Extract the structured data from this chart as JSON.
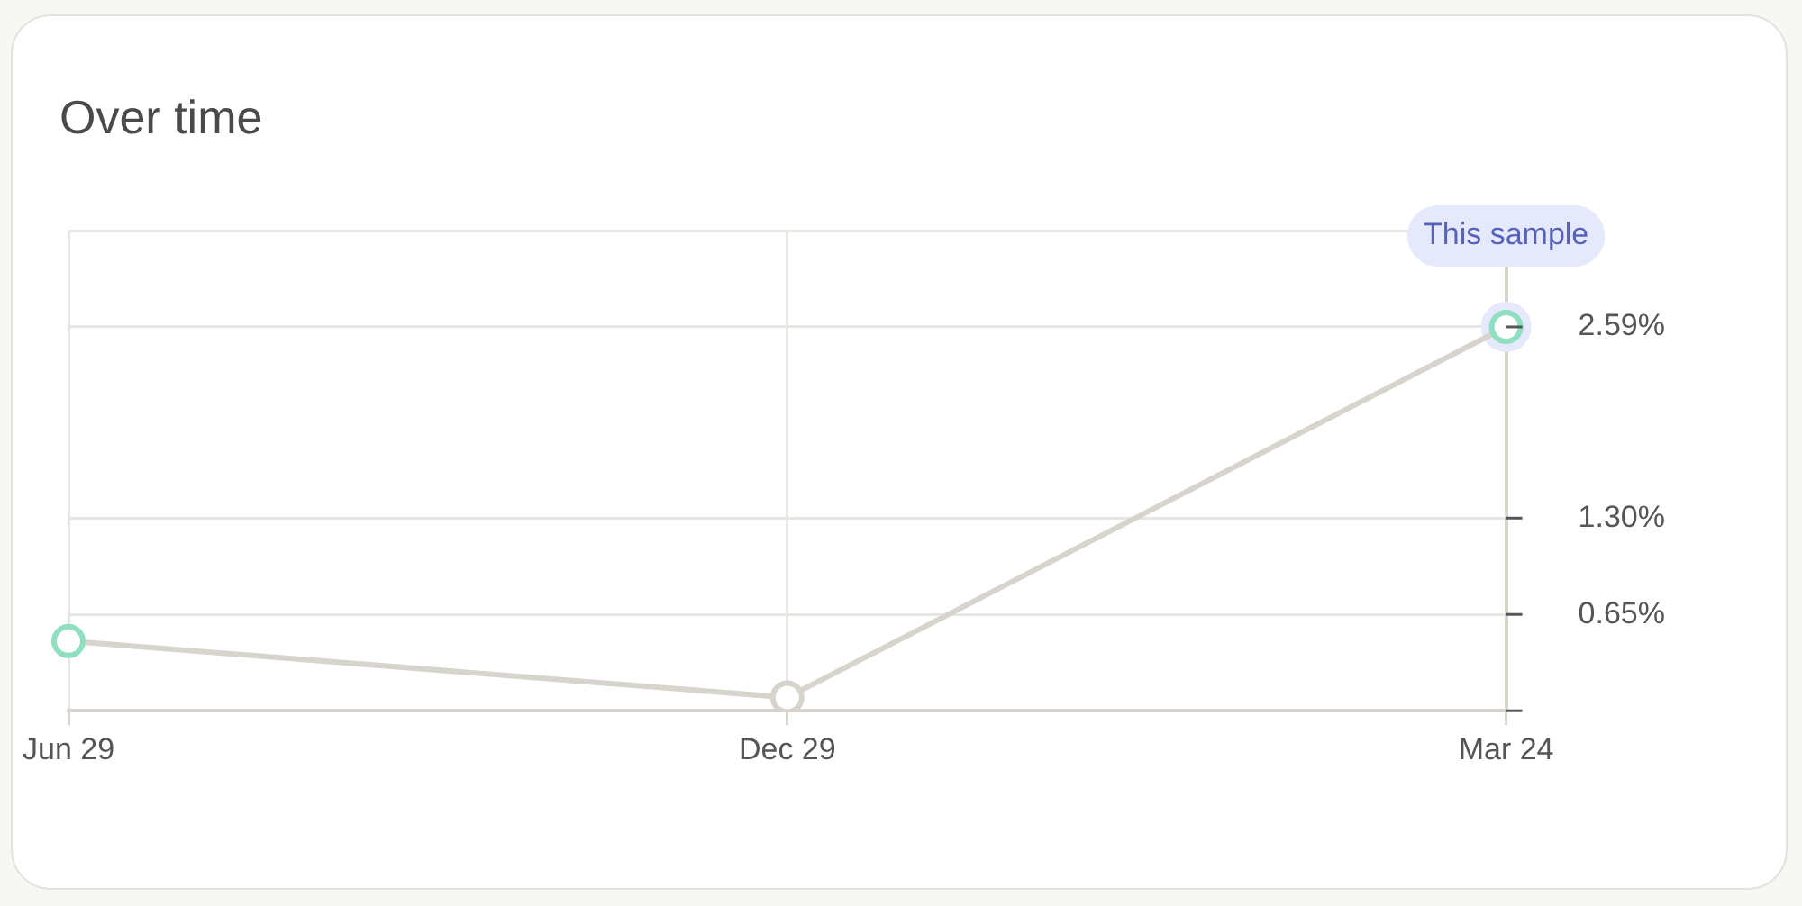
{
  "chart_data": {
    "type": "line",
    "title": "Over time",
    "categories": [
      "Jun 29",
      "Dec 29",
      "Mar 24"
    ],
    "series": [
      {
        "color": "#d6d4cc",
        "colors": [
          "#8fdfc0",
          "#d6d4cc",
          "#8fdfc0"
        ],
        "values": [
          0.47,
          0.09,
          2.59
        ]
      }
    ],
    "ylim": [
      0,
      3.24
    ],
    "yticks": [
      {
        "value": 0,
        "label": null
      },
      {
        "value": 0.65,
        "label": "0.65%"
      },
      {
        "value": 1.3,
        "label": "1.30%"
      },
      {
        "value": 2.59,
        "label": "2.59%"
      },
      {
        "value": 3.24,
        "label": null
      }
    ],
    "grid": true,
    "legend": false,
    "marker": "circle",
    "line_style": "solid",
    "annotations": [
      {
        "text": "This sample",
        "x": "Mar 24",
        "y": 2.59
      }
    ]
  }
}
